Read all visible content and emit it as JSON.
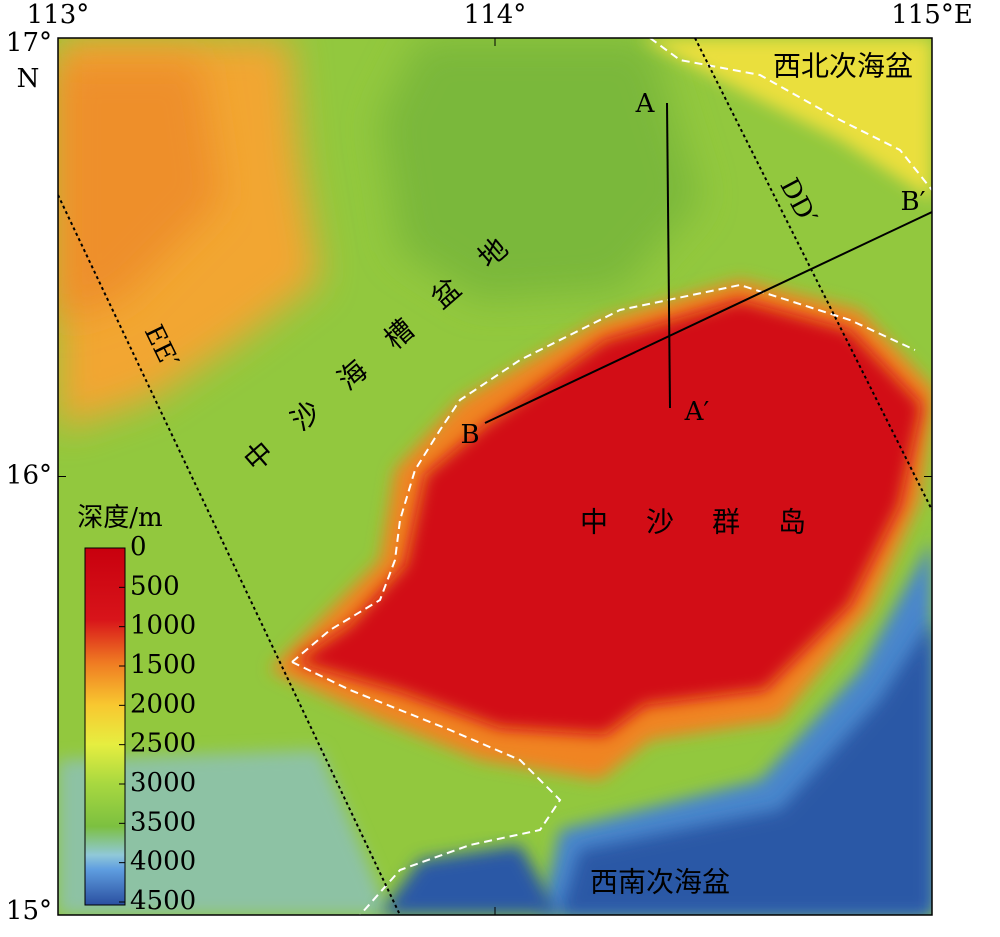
{
  "map": {
    "lon_lim": [
      113,
      115
    ],
    "lat_lim": [
      15,
      17
    ],
    "lon_ticks": [
      {
        "value": 113,
        "label": "113°"
      },
      {
        "value": 114,
        "label": "114°"
      },
      {
        "value": 115,
        "label": "115°E"
      }
    ],
    "lat_ticks": [
      {
        "value": 17,
        "label": "17°"
      },
      {
        "value": 16,
        "label": "16°"
      },
      {
        "value": 15,
        "label": "15°"
      }
    ],
    "north_label": "N",
    "depth_legend": {
      "title": "深度/m",
      "lim": [
        0,
        4500
      ],
      "ticks": [
        0,
        500,
        1000,
        1500,
        2000,
        2500,
        3000,
        3500,
        4000,
        4500
      ]
    },
    "region_labels": [
      "西北次海盆",
      "中沙海槽盆地",
      "中沙群岛",
      "西南次海盆"
    ],
    "profile_labels": [
      "A",
      "A′",
      "B",
      "B′",
      "DD′",
      "EE′"
    ]
  }
}
